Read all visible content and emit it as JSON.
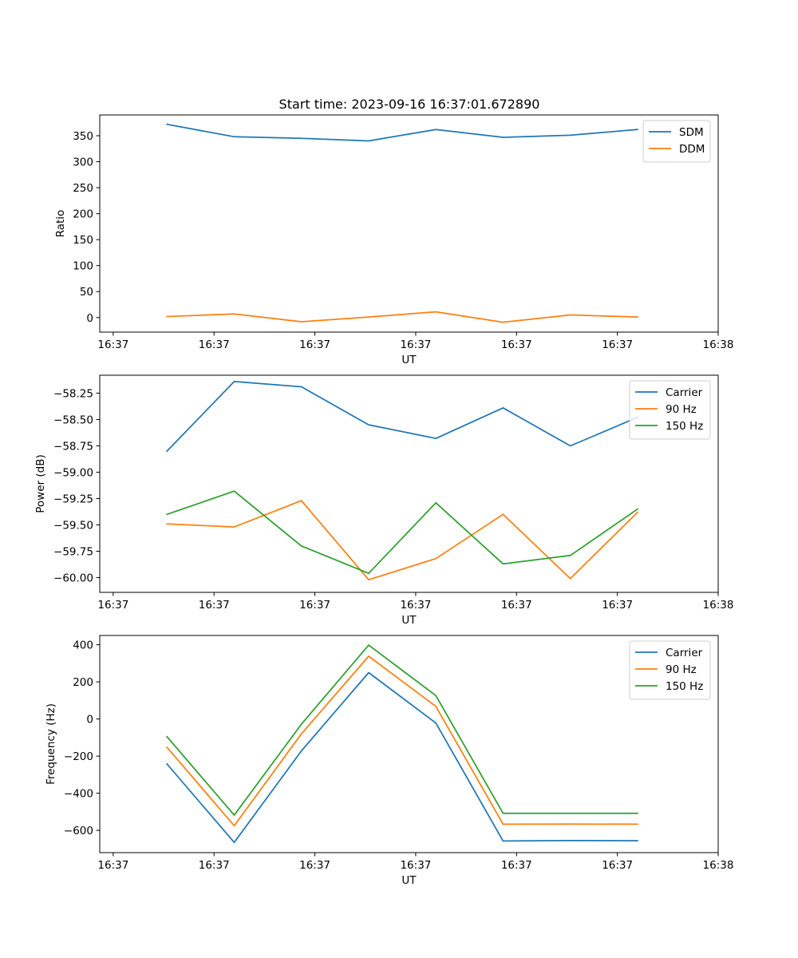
{
  "figure_title": "Start time: 2023-09-16 16:37:01.672890",
  "colors": {
    "blue": "#1f77b4",
    "orange": "#ff7f0e",
    "green": "#2ca02c"
  },
  "chart_data": [
    {
      "type": "line",
      "title": "Start time: 2023-09-16 16:37:01.672890",
      "xlabel": "UT",
      "ylabel": "Ratio",
      "xlim": [
        0,
        9.2
      ],
      "x": [
        1,
        2,
        3,
        4,
        5,
        6,
        7,
        8
      ],
      "xticks": [
        0.2,
        1.7,
        3.2,
        4.7,
        6.2,
        7.7,
        9.2
      ],
      "xticklabels": [
        "16:37",
        "16:37",
        "16:37",
        "16:37",
        "16:37",
        "16:37",
        "16:38"
      ],
      "ylim": [
        -28,
        390
      ],
      "yticks": [
        0,
        50,
        100,
        150,
        200,
        250,
        300,
        350
      ],
      "yticklabels": [
        "0",
        "50",
        "100",
        "150",
        "200",
        "250",
        "300",
        "350"
      ],
      "legend_position": "upper right",
      "series": [
        {
          "name": "SDM",
          "color": "#1f77b4",
          "values": [
            372,
            348,
            345,
            340,
            362,
            347,
            351,
            362
          ]
        },
        {
          "name": "DDM",
          "color": "#ff7f0e",
          "values": [
            2,
            7,
            -8,
            1,
            11,
            -9,
            5,
            1
          ]
        }
      ]
    },
    {
      "type": "line",
      "xlabel": "UT",
      "ylabel": "Power (dB)",
      "xlim": [
        0,
        9.2
      ],
      "x": [
        1,
        2,
        3,
        4,
        5,
        6,
        7,
        8
      ],
      "xticks": [
        0.2,
        1.7,
        3.2,
        4.7,
        6.2,
        7.7,
        9.2
      ],
      "xticklabels": [
        "16:37",
        "16:37",
        "16:37",
        "16:37",
        "16:37",
        "16:37",
        "16:38"
      ],
      "ylim": [
        -60.14,
        -58.08
      ],
      "yticks": [
        -60.0,
        -59.75,
        -59.5,
        -59.25,
        -59.0,
        -58.75,
        -58.5,
        -58.25
      ],
      "yticklabels": [
        "−60.00",
        "−59.75",
        "−59.50",
        "−59.25",
        "−59.00",
        "−58.75",
        "−58.50",
        "−58.25"
      ],
      "legend_position": "upper right",
      "series": [
        {
          "name": "Carrier",
          "color": "#1f77b4",
          "values": [
            -58.8,
            -58.14,
            -58.19,
            -58.55,
            -58.68,
            -58.39,
            -58.75,
            -58.48
          ]
        },
        {
          "name": "90 Hz",
          "color": "#ff7f0e",
          "values": [
            -59.49,
            -59.52,
            -59.27,
            -60.02,
            -59.82,
            -59.4,
            -60.01,
            -59.38
          ]
        },
        {
          "name": "150 Hz",
          "color": "#2ca02c",
          "values": [
            -59.4,
            -59.18,
            -59.7,
            -59.96,
            -59.29,
            -59.87,
            -59.79,
            -59.35
          ]
        }
      ]
    },
    {
      "type": "line",
      "xlabel": "UT",
      "ylabel": "Frequency (Hz)",
      "xlim": [
        0,
        9.2
      ],
      "x": [
        1,
        2,
        3,
        4,
        5,
        6,
        7,
        8
      ],
      "xticks": [
        0.2,
        1.7,
        3.2,
        4.7,
        6.2,
        7.7,
        9.2
      ],
      "xticklabels": [
        "16:37",
        "16:37",
        "16:37",
        "16:37",
        "16:37",
        "16:37",
        "16:38"
      ],
      "ylim": [
        -720,
        450
      ],
      "yticks": [
        -600,
        -400,
        -200,
        0,
        200,
        400
      ],
      "yticklabels": [
        "−600",
        "−400",
        "−200",
        "0",
        "200",
        "400"
      ],
      "legend_position": "upper right",
      "series": [
        {
          "name": "Carrier",
          "color": "#1f77b4",
          "values": [
            -242,
            -665,
            -172,
            250,
            -22,
            -657,
            -655,
            -656
          ]
        },
        {
          "name": "90 Hz",
          "color": "#ff7f0e",
          "values": [
            -152,
            -575,
            -80,
            338,
            68,
            -567,
            -566,
            -567
          ]
        },
        {
          "name": "150 Hz",
          "color": "#2ca02c",
          "values": [
            -95,
            -518,
            -28,
            398,
            126,
            -508,
            -508,
            -508
          ]
        }
      ]
    }
  ]
}
